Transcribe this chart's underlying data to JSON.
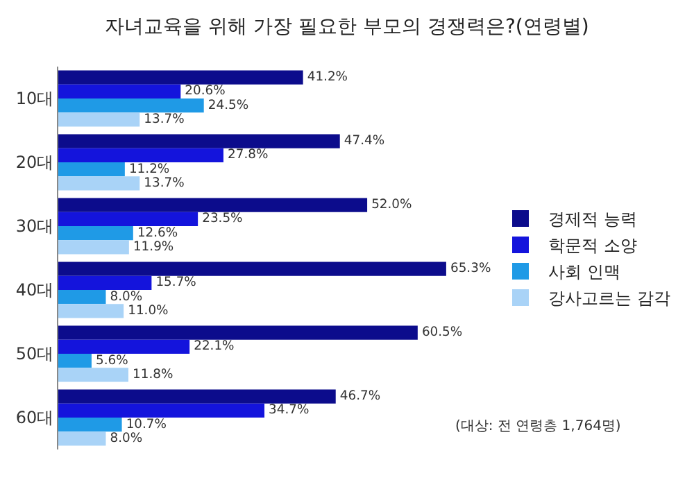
{
  "chart_data": {
    "type": "bar",
    "orientation": "horizontal",
    "title": "자녀교육을 위해 가장 필요한 부모의 경쟁력은?(연령별)",
    "categories": [
      "10대",
      "20대",
      "30대",
      "40대",
      "50대",
      "60대"
    ],
    "series": [
      {
        "name": "경제적 능력",
        "color": "#0c0c8c",
        "values": [
          41.2,
          47.4,
          52.0,
          65.3,
          60.5,
          46.7
        ],
        "value_labels": [
          "41.2%",
          "47.4%",
          "52.0%",
          "65.3%",
          "60.5%",
          "46.7%"
        ]
      },
      {
        "name": "학문적 소양",
        "color": "#1414dc",
        "values": [
          20.6,
          27.8,
          23.5,
          15.7,
          22.1,
          34.7
        ],
        "value_labels": [
          "20.6%",
          "27.8%",
          "23.5%",
          "15.7%",
          "22.1%",
          "34.7%"
        ]
      },
      {
        "name": "사회 인맥",
        "color": "#1f9ae6",
        "values": [
          24.5,
          11.2,
          12.6,
          8.0,
          5.6,
          10.7
        ],
        "value_labels": [
          "24.5%",
          "11.2%",
          "12.6%",
          "8.0%",
          "5.6%",
          "10.7%"
        ]
      },
      {
        "name": "강사고르는 감각",
        "color": "#a9d3f7",
        "values": [
          13.7,
          13.7,
          11.9,
          11.0,
          11.8,
          8.0
        ],
        "value_labels": [
          "13.7%",
          "13.7%",
          "11.9%",
          "11.0%",
          "11.8%",
          "8.0%"
        ]
      }
    ],
    "legend": "right",
    "annotations": [
      "(대상: 전 연령층 1,764명)"
    ]
  }
}
